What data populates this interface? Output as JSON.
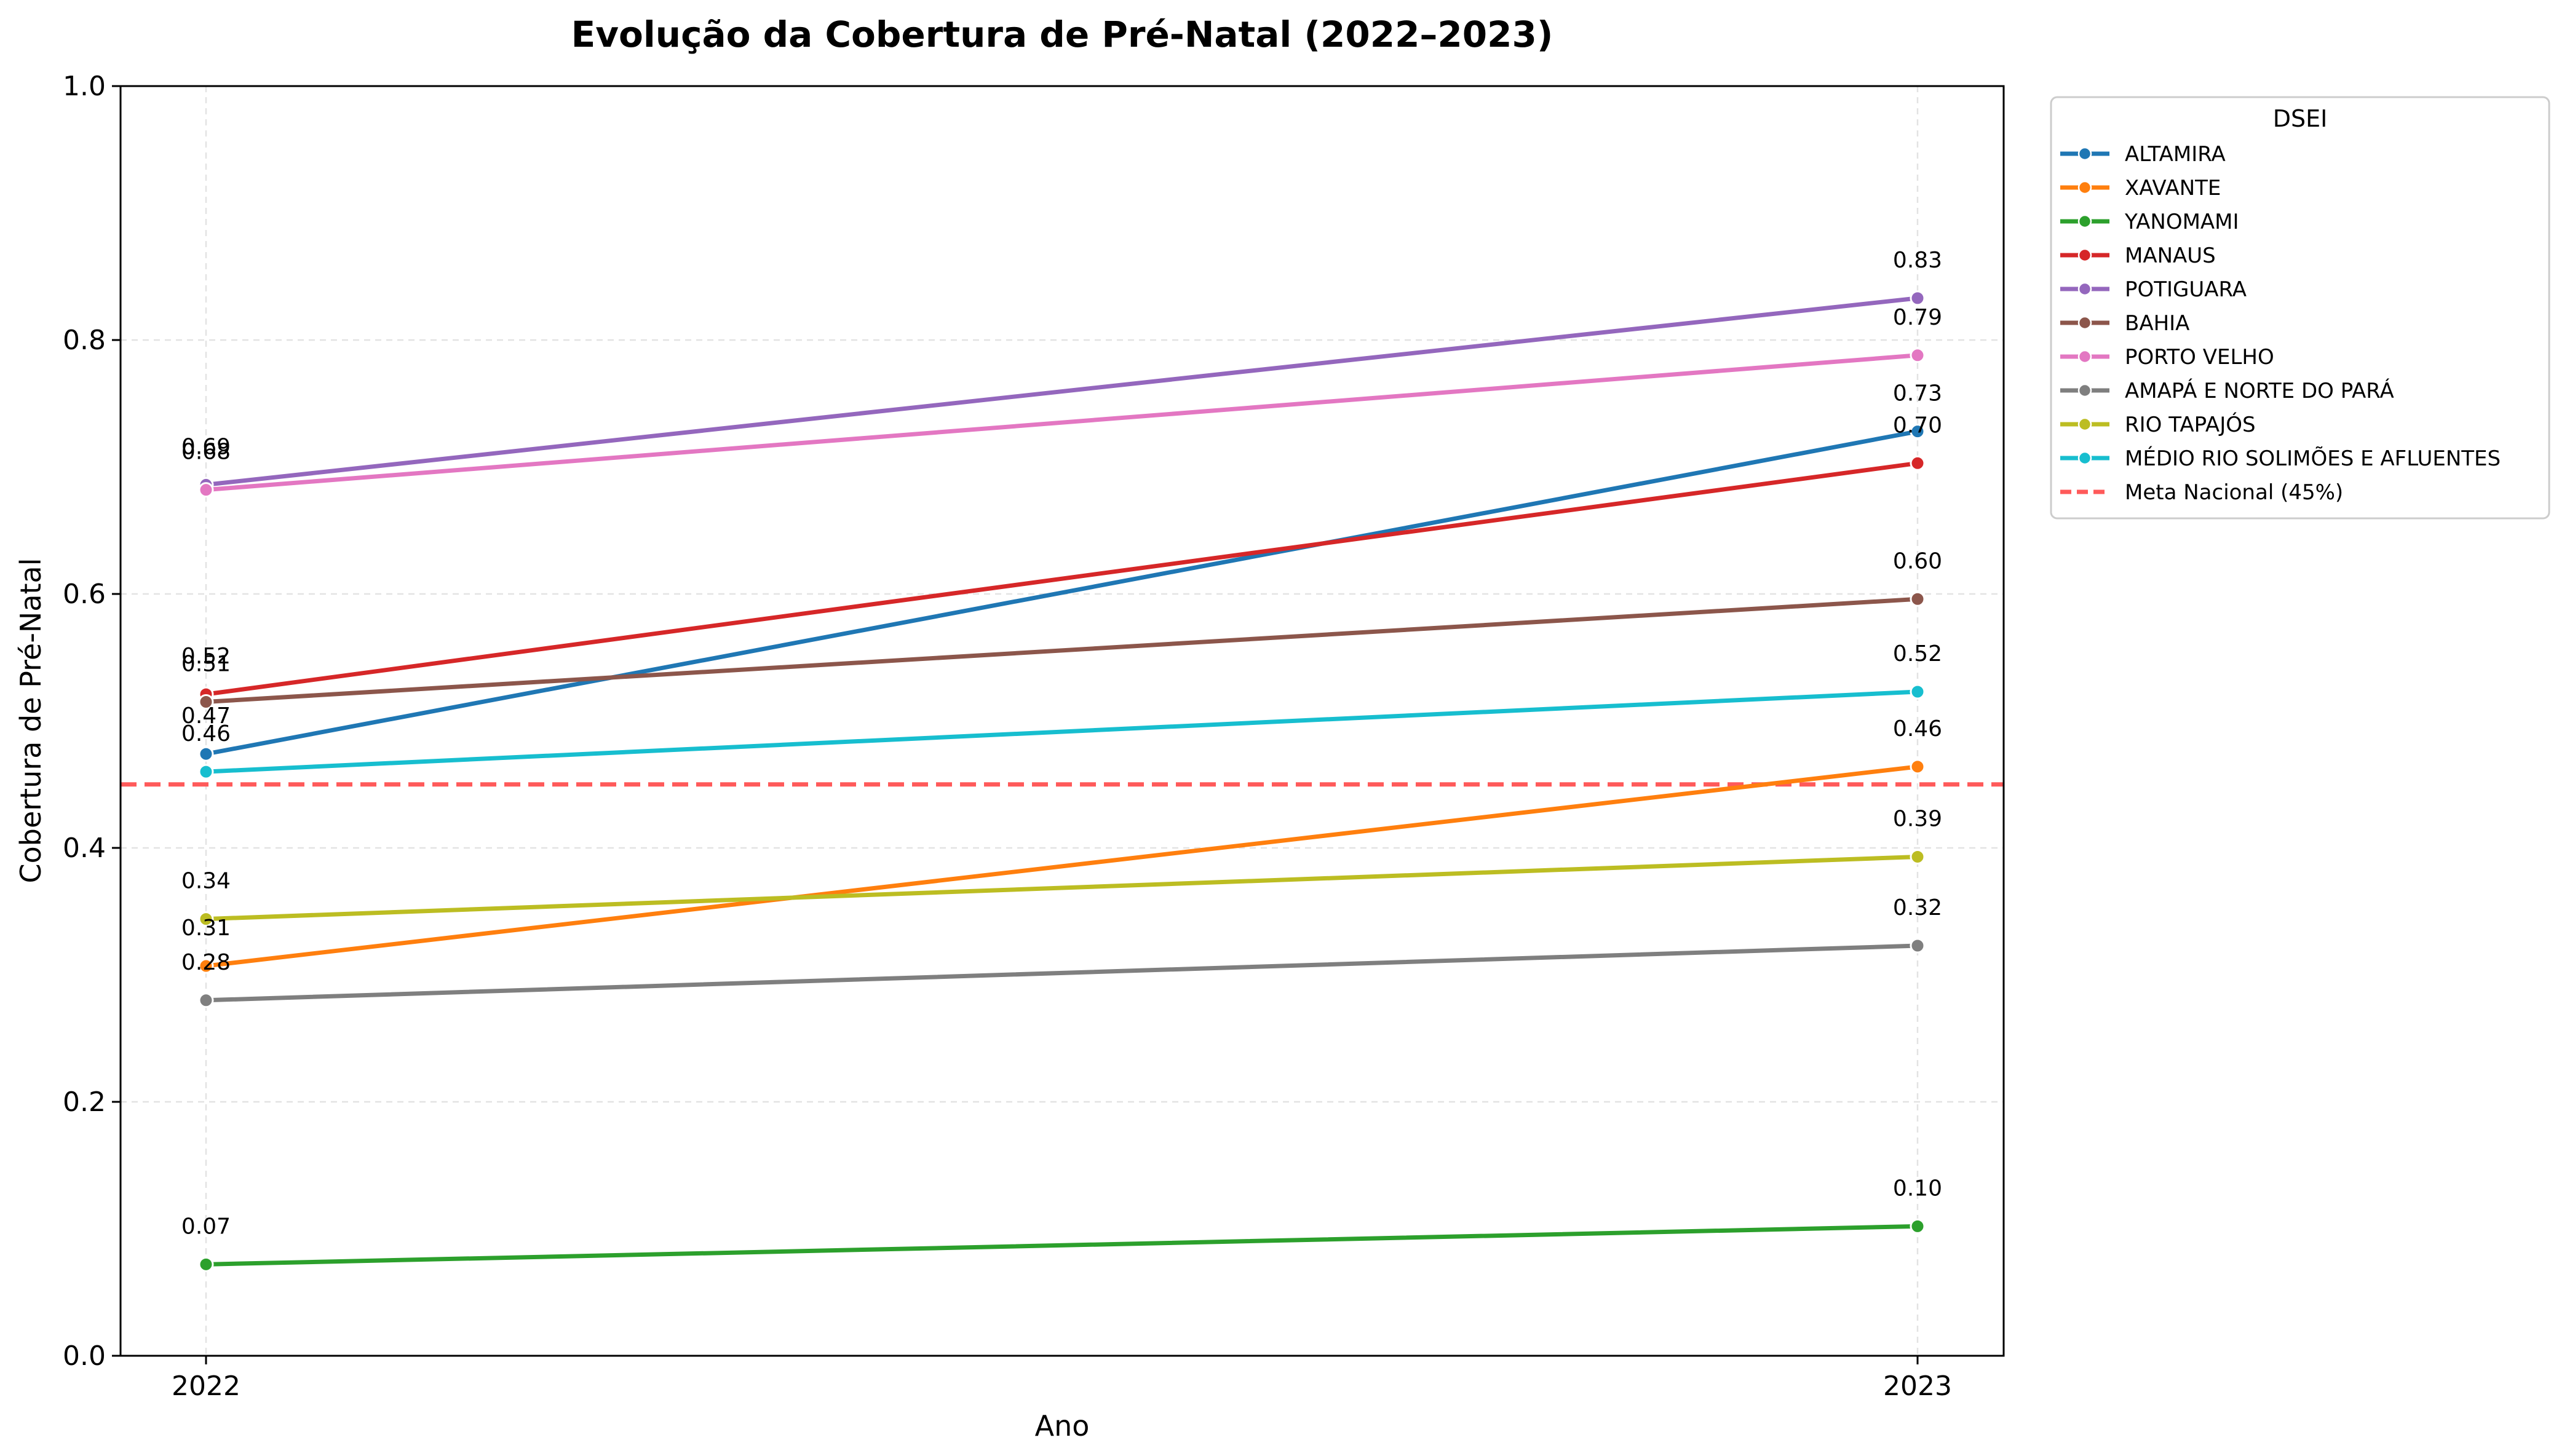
{
  "chart_data": {
    "type": "line",
    "title": "Evolução da Cobertura de Pré-Natal (2022–2023)",
    "xlabel": "Ano",
    "ylabel": "Cobertura de Pré-Natal",
    "x": [
      "2022",
      "2023"
    ],
    "ylim": [
      0,
      1
    ],
    "yticks": [
      "0.0",
      "0.2",
      "0.4",
      "0.6",
      "0.8",
      "1.0"
    ],
    "grid": true,
    "legend_title": "DSEI",
    "legend_position": "outside-top-right",
    "series": [
      {
        "name": "ALTAMIRA",
        "color": "#1f77b4",
        "values": [
          0.474,
          0.728
        ],
        "labels": [
          "0.47",
          "0.73"
        ]
      },
      {
        "name": "XAVANTE",
        "color": "#ff7f0e",
        "values": [
          0.307,
          0.464
        ],
        "labels": [
          "0.31",
          "0.46"
        ]
      },
      {
        "name": "YANOMAMI",
        "color": "#2ca02c",
        "values": [
          0.072,
          0.102
        ],
        "labels": [
          "0.07",
          "0.10"
        ]
      },
      {
        "name": "MANAUS",
        "color": "#d62728",
        "values": [
          0.521,
          0.703
        ],
        "labels": [
          "0.52",
          "0.70"
        ]
      },
      {
        "name": "POTIGUARA",
        "color": "#9467bd",
        "values": [
          0.686,
          0.833
        ],
        "labels": [
          "0.69",
          "0.83"
        ]
      },
      {
        "name": "BAHIA",
        "color": "#8c564b",
        "values": [
          0.515,
          0.596
        ],
        "labels": [
          "0.51",
          "0.60"
        ]
      },
      {
        "name": "PORTO VELHO",
        "color": "#e377c2",
        "values": [
          0.682,
          0.788
        ],
        "labels": [
          "0.68",
          "0.79"
        ]
      },
      {
        "name": "AMAPÁ E NORTE DO PARÁ",
        "color": "#7f7f7f",
        "values": [
          0.28,
          0.323
        ],
        "labels": [
          "0.28",
          "0.32"
        ]
      },
      {
        "name": "RIO TAPAJÓS",
        "color": "#bcbd22",
        "values": [
          0.344,
          0.393
        ],
        "labels": [
          "0.34",
          "0.39"
        ]
      },
      {
        "name": "MÉDIO RIO SOLIMÕES E AFLUENTES",
        "color": "#17becf",
        "values": [
          0.46,
          0.523
        ],
        "labels": [
          "0.46",
          "0.52"
        ]
      }
    ],
    "reference_line": {
      "name": "Meta Nacional (45%)",
      "value": 0.45,
      "color": "#ff5a5a",
      "style": "dashed"
    }
  }
}
